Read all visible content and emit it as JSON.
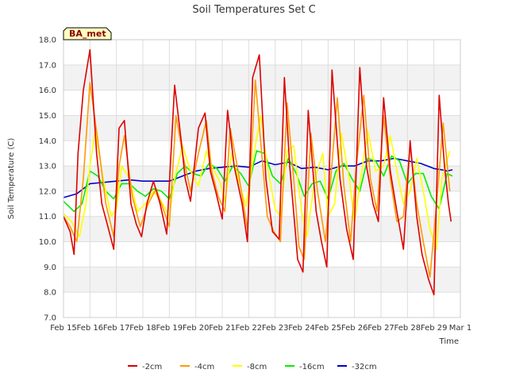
{
  "chart_data": {
    "type": "line",
    "title": "Soil Temperatures Set C",
    "xlabel": "Time",
    "ylabel": "Soil Temperature (C)",
    "badge": "BA_met",
    "ylim": [
      7.0,
      18.0
    ],
    "xlim": [
      "2024-02-15",
      "2024-03-01"
    ],
    "grid": true,
    "legend_position": "bottom",
    "y_ticks": [
      "7.0",
      "8.0",
      "9.0",
      "10.0",
      "11.0",
      "12.0",
      "13.0",
      "14.0",
      "15.0",
      "16.0",
      "17.0",
      "18.0"
    ],
    "x_ticks": [
      "Feb 15",
      "Feb 16",
      "Feb 17",
      "Feb 18",
      "Feb 19",
      "Feb 20",
      "Feb 21",
      "Feb 22",
      "Feb 23",
      "Feb 24",
      "Feb 25",
      "Feb 26",
      "Feb 27",
      "Feb 28",
      "Feb 29",
      "Mar 1"
    ],
    "series": [
      {
        "name": "-2cm",
        "color": "#dd0000",
        "x": [
          15.0,
          15.25,
          15.4,
          15.55,
          15.75,
          16.0,
          16.25,
          16.45,
          16.7,
          16.9,
          17.1,
          17.3,
          17.55,
          17.75,
          17.95,
          18.15,
          18.4,
          18.65,
          18.9,
          19.2,
          19.45,
          19.6,
          19.8,
          20.1,
          20.35,
          20.55,
          20.75,
          21.0,
          21.2,
          21.45,
          21.75,
          21.95,
          22.15,
          22.4,
          22.65,
          22.9,
          23.15,
          23.35,
          23.55,
          23.85,
          24.05,
          24.25,
          24.55,
          24.75,
          24.95,
          25.15,
          25.45,
          25.7,
          25.95,
          26.2,
          26.45,
          26.7,
          26.9,
          27.1,
          27.35,
          27.6,
          27.85,
          28.1,
          28.35,
          28.55,
          28.8,
          29.0,
          29.2,
          29.4,
          29.55,
          29.65
        ],
        "y": [
          11.0,
          10.4,
          9.5,
          13.5,
          16.0,
          17.6,
          13.5,
          11.5,
          10.5,
          9.7,
          14.5,
          14.8,
          11.5,
          10.7,
          10.2,
          11.5,
          12.4,
          11.5,
          10.3,
          16.2,
          14.0,
          12.5,
          11.6,
          14.5,
          15.1,
          12.8,
          12.0,
          10.9,
          15.2,
          13.0,
          11.5,
          10.0,
          16.5,
          17.4,
          12.5,
          10.4,
          10.1,
          16.5,
          13.0,
          9.3,
          8.8,
          15.2,
          11.2,
          10.0,
          9.0,
          16.8,
          12.5,
          10.5,
          9.3,
          16.9,
          13.0,
          11.5,
          10.8,
          15.7,
          12.8,
          11.2,
          9.7,
          14.0,
          11.0,
          9.5,
          8.5,
          7.9,
          15.8,
          13.0,
          11.5,
          10.8
        ]
      },
      {
        "name": "-4cm",
        "color": "#ff9900",
        "x": [
          15.0,
          15.25,
          15.5,
          15.75,
          16.0,
          16.3,
          16.6,
          16.9,
          17.1,
          17.3,
          17.6,
          17.9,
          18.2,
          18.5,
          18.8,
          19.0,
          19.25,
          19.5,
          19.8,
          20.1,
          20.4,
          20.6,
          20.85,
          21.1,
          21.3,
          21.6,
          21.95,
          22.25,
          22.45,
          22.7,
          22.95,
          23.2,
          23.45,
          23.7,
          23.9,
          24.1,
          24.35,
          24.6,
          24.9,
          25.1,
          25.35,
          25.6,
          25.85,
          26.05,
          26.35,
          26.6,
          26.85,
          27.1,
          27.35,
          27.6,
          27.85,
          28.1,
          28.35,
          28.6,
          28.85,
          29.1,
          29.35,
          29.6
        ],
        "y": [
          11.0,
          10.6,
          10.0,
          12.5,
          16.3,
          14.0,
          11.5,
          10.2,
          13.0,
          14.2,
          11.8,
          10.6,
          11.5,
          12.1,
          11.2,
          10.6,
          15.0,
          13.5,
          12.0,
          13.5,
          14.8,
          12.8,
          11.8,
          11.2,
          14.5,
          12.8,
          10.5,
          16.4,
          14.0,
          11.0,
          10.4,
          10.0,
          15.5,
          12.5,
          9.8,
          9.3,
          14.3,
          12.0,
          10.0,
          12.5,
          15.7,
          12.2,
          10.0,
          12.8,
          15.8,
          12.5,
          11.2,
          15.0,
          12.5,
          10.8,
          11.0,
          13.8,
          11.5,
          10.0,
          8.6,
          11.5,
          14.7,
          12.0
        ]
      },
      {
        "name": "-8cm",
        "color": "#ffff00",
        "x": [
          15.0,
          15.3,
          15.6,
          15.85,
          16.0,
          16.2,
          16.5,
          16.8,
          17.0,
          17.2,
          17.5,
          17.8,
          18.1,
          18.4,
          18.7,
          19.0,
          19.2,
          19.5,
          19.8,
          20.1,
          20.4,
          20.6,
          20.9,
          21.1,
          21.35,
          21.6,
          21.9,
          22.2,
          22.45,
          22.7,
          23.0,
          23.2,
          23.45,
          23.7,
          24.0,
          24.2,
          24.5,
          24.8,
          25.0,
          25.25,
          25.5,
          25.8,
          26.0,
          26.3,
          26.5,
          26.8,
          27.1,
          27.35,
          27.6,
          27.85,
          28.1,
          28.35,
          28.6,
          28.85,
          29.1,
          29.3,
          29.6
        ],
        "y": [
          11.1,
          10.8,
          10.2,
          11.5,
          13.0,
          14.4,
          12.5,
          11.0,
          11.3,
          13.0,
          12.5,
          11.2,
          11.5,
          12.0,
          11.6,
          11.0,
          12.5,
          13.8,
          12.8,
          12.2,
          13.6,
          13.0,
          12.4,
          11.6,
          13.5,
          12.5,
          11.4,
          13.5,
          15.0,
          13.0,
          11.3,
          11.0,
          13.6,
          13.8,
          11.2,
          10.2,
          12.5,
          13.5,
          11.0,
          11.5,
          14.3,
          12.5,
          10.8,
          13.0,
          14.4,
          12.8,
          13.0,
          14.2,
          12.8,
          11.5,
          12.0,
          13.3,
          12.0,
          10.5,
          9.7,
          12.5,
          13.6
        ]
      },
      {
        "name": "-16cm",
        "color": "#00ee00",
        "x": [
          15.0,
          15.4,
          15.7,
          16.0,
          16.3,
          16.6,
          16.9,
          17.2,
          17.5,
          17.8,
          18.1,
          18.4,
          18.7,
          19.0,
          19.3,
          19.6,
          19.9,
          20.2,
          20.5,
          20.8,
          21.1,
          21.4,
          21.7,
          22.0,
          22.3,
          22.6,
          22.9,
          23.2,
          23.5,
          23.8,
          24.1,
          24.4,
          24.7,
          25.0,
          25.3,
          25.6,
          25.9,
          26.2,
          26.5,
          26.8,
          27.1,
          27.4,
          27.7,
          28.0,
          28.3,
          28.6,
          28.9,
          29.2,
          29.5,
          29.7
        ],
        "y": [
          11.6,
          11.2,
          11.5,
          12.8,
          12.6,
          12.0,
          11.7,
          12.3,
          12.3,
          12.0,
          11.8,
          12.1,
          12.0,
          11.7,
          12.7,
          13.0,
          12.7,
          12.6,
          13.1,
          12.9,
          12.4,
          13.0,
          12.7,
          12.2,
          13.6,
          13.5,
          12.6,
          12.3,
          13.3,
          12.7,
          11.8,
          12.3,
          12.4,
          11.7,
          12.8,
          13.1,
          12.5,
          12.0,
          13.3,
          13.2,
          12.6,
          13.4,
          13.2,
          12.3,
          12.7,
          12.7,
          11.8,
          11.3,
          12.7,
          12.6
        ]
      },
      {
        "name": "-32cm",
        "color": "#0000cc",
        "x": [
          15.0,
          15.5,
          16.0,
          16.5,
          17.0,
          17.5,
          18.0,
          18.5,
          19.0,
          19.5,
          20.0,
          20.5,
          21.0,
          21.5,
          22.0,
          22.5,
          23.0,
          23.5,
          24.0,
          24.5,
          25.0,
          25.5,
          26.0,
          26.5,
          27.0,
          27.5,
          28.0,
          28.5,
          29.0,
          29.3,
          29.5,
          29.7
        ],
        "y": [
          11.75,
          11.9,
          12.3,
          12.35,
          12.4,
          12.45,
          12.4,
          12.4,
          12.4,
          12.6,
          12.8,
          12.9,
          12.95,
          13.0,
          12.95,
          13.2,
          13.05,
          13.15,
          12.9,
          12.95,
          12.85,
          13.0,
          13.0,
          13.2,
          13.2,
          13.3,
          13.2,
          13.1,
          12.9,
          12.85,
          12.8,
          12.85
        ]
      }
    ]
  }
}
